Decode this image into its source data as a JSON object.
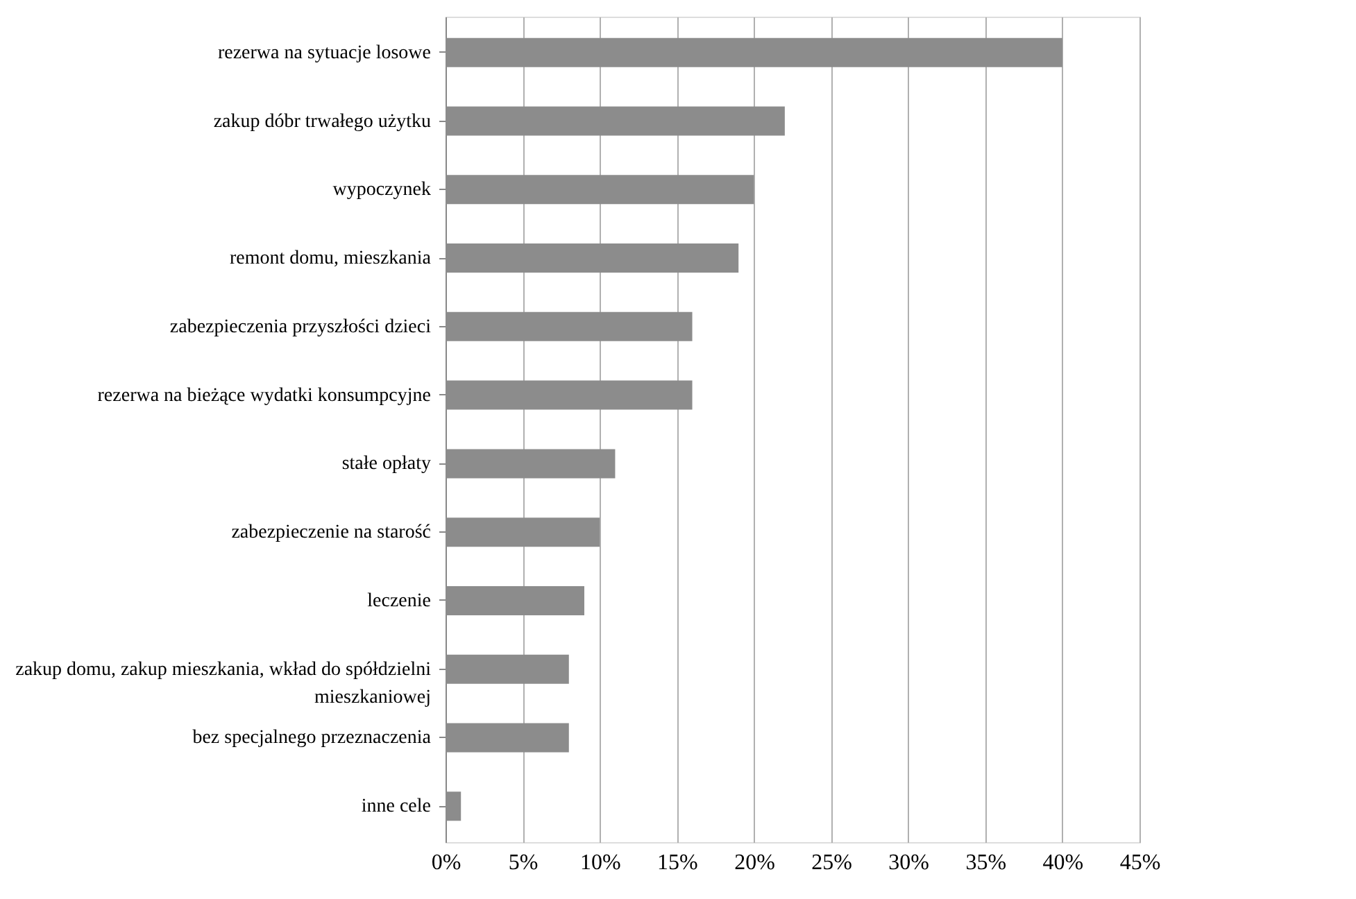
{
  "chart_data": {
    "type": "bar",
    "orientation": "horizontal",
    "categories": [
      "rezerwa na sytuacje losowe",
      "zakup dóbr trwałego użytku",
      "wypoczynek",
      "remont domu, mieszkania",
      "zabezpieczenia przyszłości dzieci",
      "rezerwa na bieżące wydatki konsumpcyjne",
      "stałe opłaty",
      "zabezpieczenie na starość",
      "leczenie",
      "zakup domu, zakup mieszkania, wkład do spółdzielni mieszkaniowej",
      "bez specjalnego przeznaczenia",
      "inne cele"
    ],
    "values": [
      40,
      22,
      20,
      19,
      16,
      16,
      11,
      10,
      9,
      8,
      8,
      1
    ],
    "color": "#8c8c8c",
    "xlim": [
      0,
      45
    ],
    "xticks": [
      {
        "value": 0,
        "label": "0%"
      },
      {
        "value": 5,
        "label": "5%"
      },
      {
        "value": 10,
        "label": "10%"
      },
      {
        "value": 15,
        "label": "15%"
      },
      {
        "value": 20,
        "label": "20%"
      },
      {
        "value": 25,
        "label": "25%"
      },
      {
        "value": 30,
        "label": "30%"
      },
      {
        "value": 35,
        "label": "35%"
      },
      {
        "value": 40,
        "label": "40%"
      },
      {
        "value": 45,
        "label": "45%"
      }
    ],
    "grid": "x"
  }
}
